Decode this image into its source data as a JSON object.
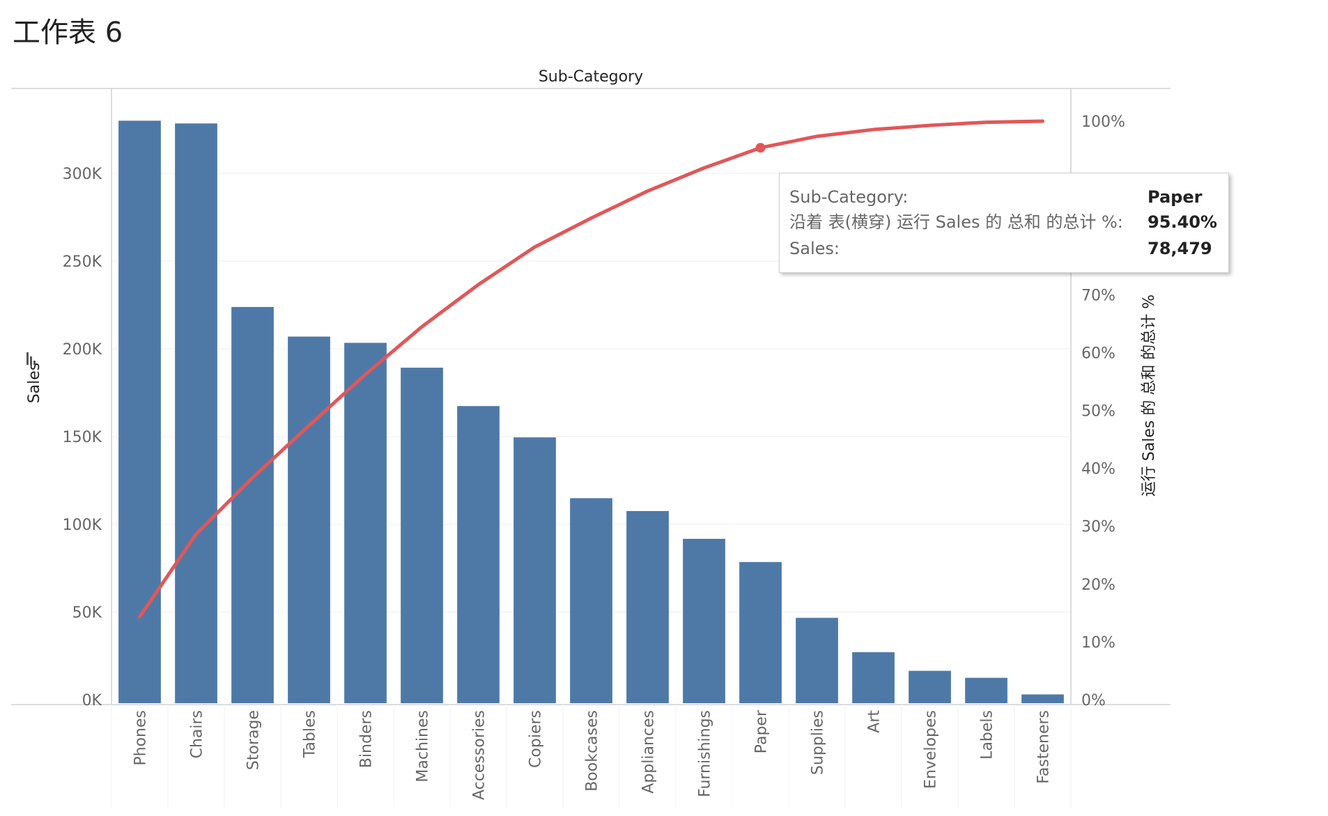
{
  "sheet_title": "工作表 6",
  "colors": {
    "bar": "#4e79a7",
    "line": "#e15759",
    "grid": "#ececec",
    "axis": "#d0d0d0"
  },
  "chart_data": {
    "type": "bar",
    "title": "Sub-Category",
    "ylabel": "Sales",
    "y2label": "运行 Sales 的 总和 的总计 %",
    "ylim": [
      0,
      340000
    ],
    "y2lim": [
      0,
      1.0
    ],
    "yticks": [
      "0K",
      "50K",
      "100K",
      "150K",
      "200K",
      "250K",
      "300K"
    ],
    "y2ticks": [
      "0%",
      "10%",
      "20%",
      "30%",
      "40%",
      "50%",
      "60%",
      "70%",
      "100%"
    ],
    "categories": [
      "Phones",
      "Chairs",
      "Storage",
      "Tables",
      "Binders",
      "Machines",
      "Accessories",
      "Copiers",
      "Bookcases",
      "Appliances",
      "Furnishings",
      "Paper",
      "Supplies",
      "Art",
      "Envelopes",
      "Labels",
      "Fasteners"
    ],
    "series": [
      {
        "values": [
          330007,
          328449,
          223844,
          206966,
          203413,
          189239,
          167380,
          149528,
          114880,
          107532,
          91705,
          78479,
          46674,
          27119,
          16476,
          12486,
          3024
        ]
      },
      {
        "values": [
          0.1435,
          0.2863,
          0.3838,
          0.4738,
          0.5623,
          0.6446,
          0.7174,
          0.7825,
          0.8324,
          0.8792,
          0.9191,
          0.954,
          0.9737,
          0.9855,
          0.9927,
          0.9981,
          1.0
        ]
      }
    ],
    "highlight": "Paper",
    "grid": true
  },
  "tooltip": {
    "rows": [
      {
        "label": "Sub-Category:",
        "value": "Paper"
      },
      {
        "label": "沿着 表(横穿) 运行 Sales 的 总和 的总计 %:",
        "value": "95.40%"
      },
      {
        "label": "Sales:",
        "value": "78,479"
      }
    ]
  }
}
